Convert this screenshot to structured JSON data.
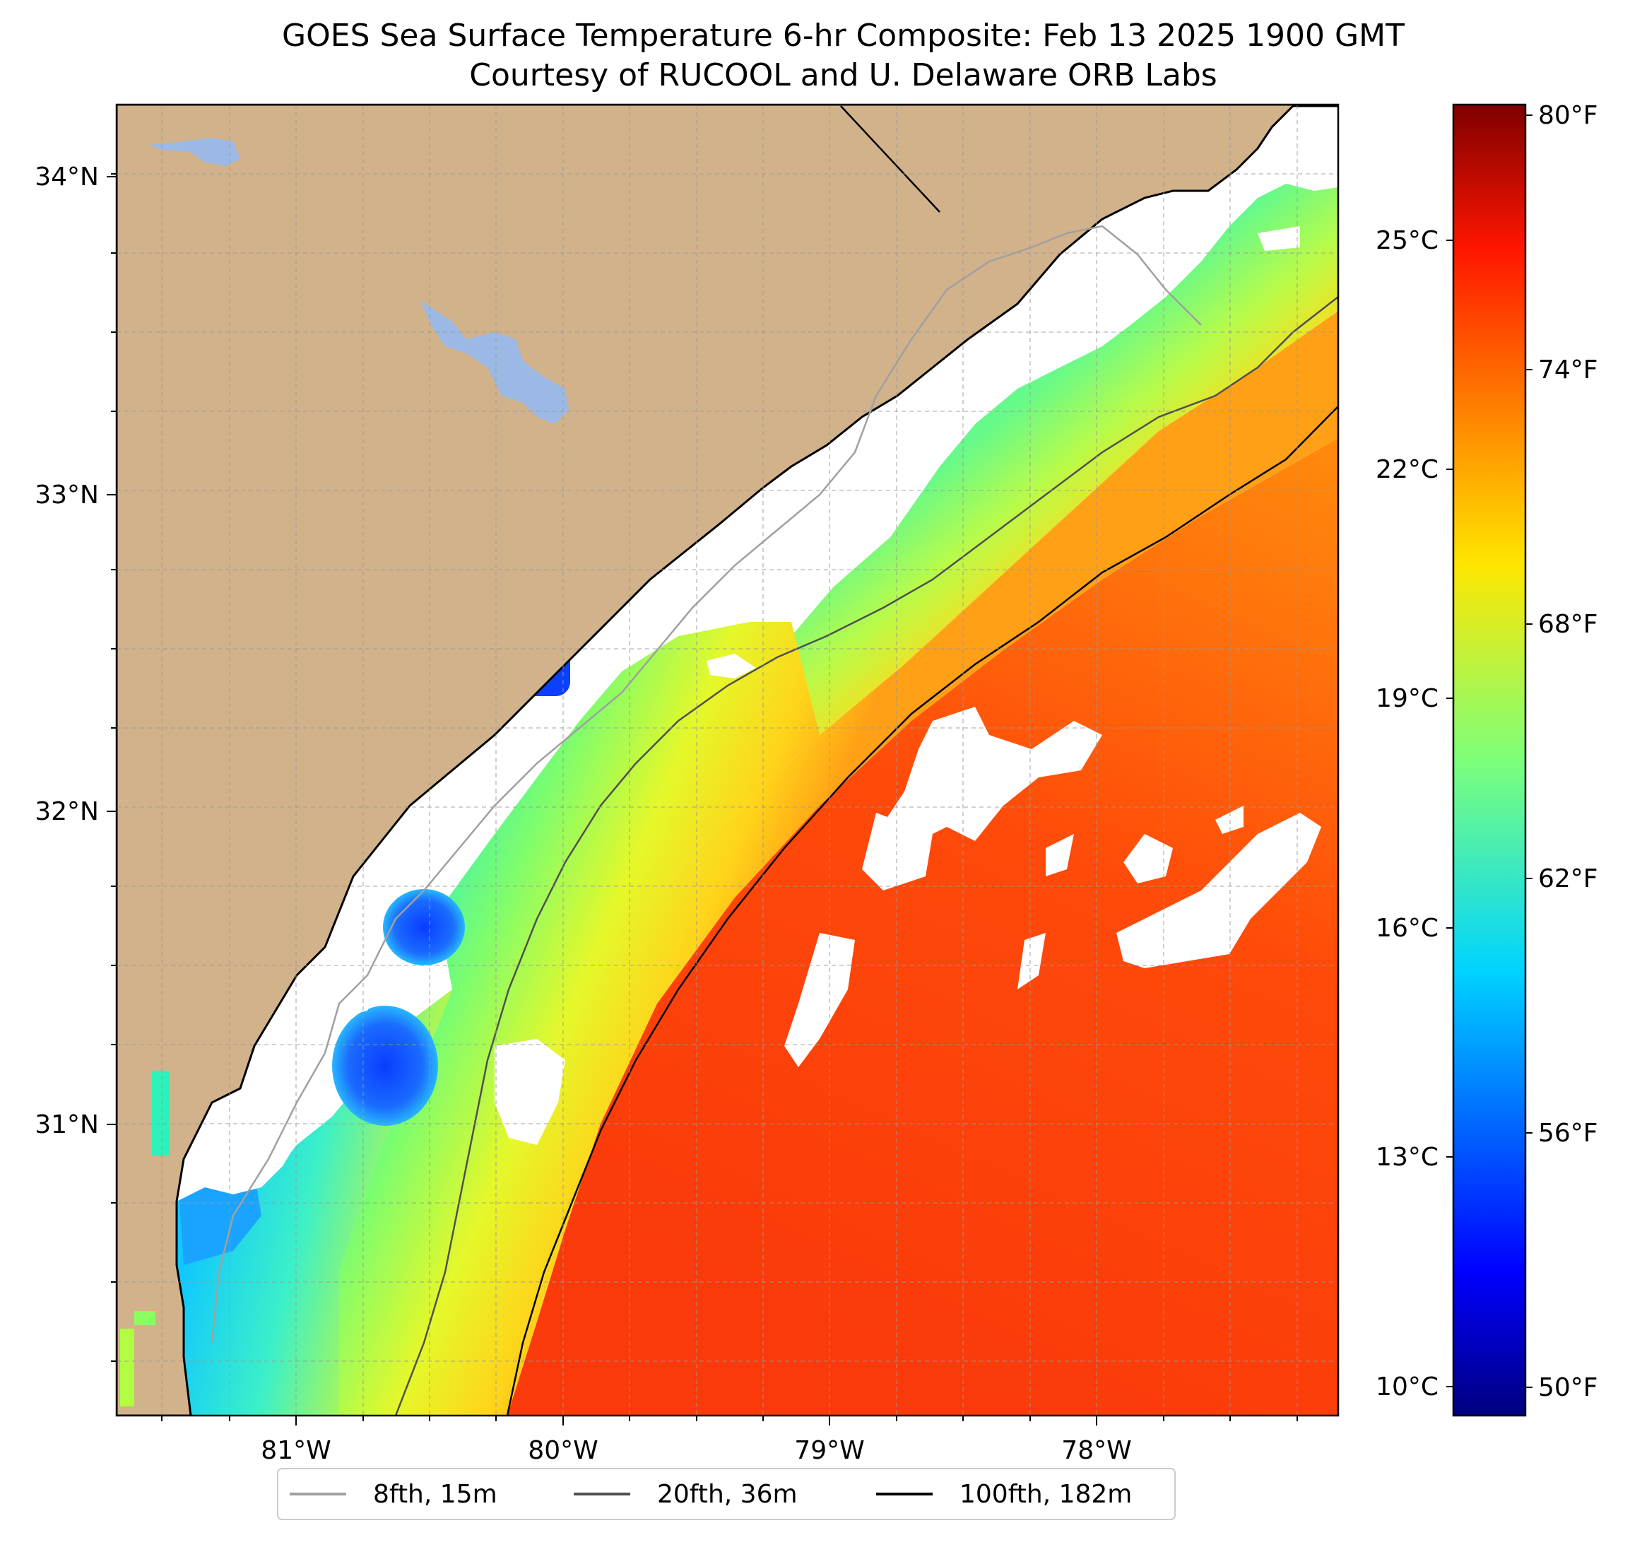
{
  "figure": {
    "title": "GOES Sea Surface Temperature 6-hr Composite: Feb 13 2025 1900 GMT",
    "subtitle": "Courtesy of RUCOOL and U. Delaware ORB Labs"
  },
  "map": {
    "lon_range": [
      -81.68,
      -77.1
    ],
    "lat_range": [
      30.1,
      34.22
    ],
    "lon_ticks": [
      "81°W",
      "80°W",
      "79°W",
      "78°W"
    ],
    "lat_ticks": [
      "34°N",
      "33°N",
      "32°N",
      "31°N"
    ],
    "gridlines": true,
    "colors": {
      "land": "#d1b28a",
      "lakes": "#9cb8e4",
      "coastline": "#000000",
      "no_data": "#ffffff",
      "contour_8fth": "#a0a0a0",
      "contour_20fth": "#505050",
      "contour_100fth": "#000000"
    }
  },
  "legend": {
    "placement": "bottom-center",
    "items": [
      {
        "label": "8fth, 15m",
        "color": "#a0a0a0"
      },
      {
        "label": "20fth, 36m",
        "color": "#505050"
      },
      {
        "label": "100fth, 182m",
        "color": "#000000"
      }
    ]
  },
  "colorbar": {
    "colormap": "jet",
    "range_c": [
      9.6,
      27.0
    ],
    "celsius_ticks": [
      "25°C",
      "22°C",
      "19°C",
      "16°C",
      "13°C",
      "10°C"
    ],
    "fahrenheit_ticks": [
      "80°F",
      "74°F",
      "68°F",
      "62°F",
      "56°F",
      "50°F"
    ]
  }
}
